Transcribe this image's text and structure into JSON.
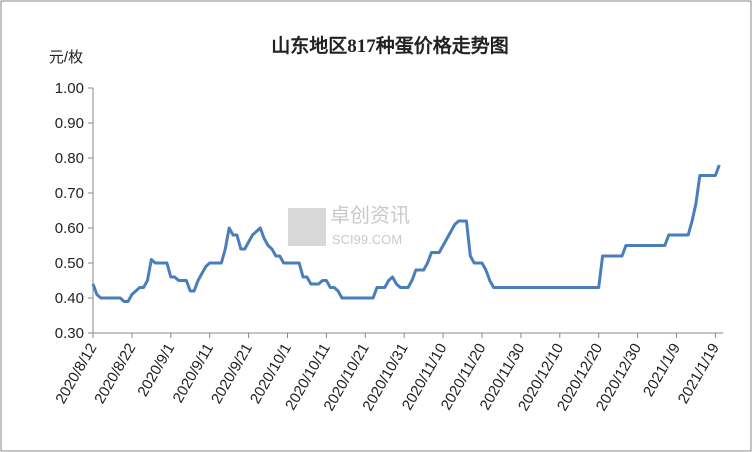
{
  "chart_data": {
    "type": "line",
    "title": "山东地区817种蛋价格走势图",
    "y_label": "元/枚",
    "watermark": [
      "卓创资讯",
      "SCI99.COM"
    ],
    "categories": [
      "2020/8/12",
      null,
      null,
      null,
      null,
      null,
      null,
      null,
      null,
      null,
      "2020/8/22",
      null,
      null,
      null,
      null,
      null,
      null,
      null,
      null,
      null,
      "2020/9/1",
      null,
      null,
      null,
      null,
      null,
      null,
      null,
      null,
      null,
      "2020/9/11",
      null,
      null,
      null,
      null,
      null,
      null,
      null,
      null,
      null,
      "2020/9/21",
      null,
      null,
      null,
      null,
      null,
      null,
      null,
      null,
      null,
      "2020/10/1",
      null,
      null,
      null,
      null,
      null,
      null,
      null,
      null,
      null,
      "2020/10/11",
      null,
      null,
      null,
      null,
      null,
      null,
      null,
      null,
      null,
      "2020/10/21",
      null,
      null,
      null,
      null,
      null,
      null,
      null,
      null,
      null,
      "2020/10/31",
      null,
      null,
      null,
      null,
      null,
      null,
      null,
      null,
      null,
      "2020/11/10",
      null,
      null,
      null,
      null,
      null,
      null,
      null,
      null,
      null,
      "2020/11/20",
      null,
      null,
      null,
      null,
      null,
      null,
      null,
      null,
      null,
      "2020/11/30",
      null,
      null,
      null,
      null,
      null,
      null,
      null,
      null,
      null,
      "2020/12/10",
      null,
      null,
      null,
      null,
      null,
      null,
      null,
      null,
      null,
      "2020/12/20",
      null,
      null,
      null,
      null,
      null,
      null,
      null,
      null,
      null,
      "2020/12/30",
      null,
      null,
      null,
      null,
      null,
      null,
      null,
      null,
      null,
      "2021/1/9",
      null,
      null,
      null,
      null,
      null,
      null,
      null,
      null,
      null,
      "2021/1/19",
      null
    ],
    "series": [
      {
        "name": "817种蛋",
        "color": "#4a7ebb",
        "values": [
          0.44,
          0.41,
          0.4,
          0.4,
          0.4,
          0.4,
          0.4,
          0.4,
          0.39,
          0.39,
          0.41,
          0.42,
          0.43,
          0.43,
          0.45,
          0.51,
          0.5,
          0.5,
          0.5,
          0.5,
          0.46,
          0.46,
          0.45,
          0.45,
          0.45,
          0.42,
          0.42,
          0.45,
          0.47,
          0.49,
          0.5,
          0.5,
          0.5,
          0.5,
          0.54,
          0.6,
          0.58,
          0.58,
          0.54,
          0.54,
          0.56,
          0.58,
          0.59,
          0.6,
          0.57,
          0.55,
          0.54,
          0.52,
          0.52,
          0.5,
          0.5,
          0.5,
          0.5,
          0.5,
          0.46,
          0.46,
          0.44,
          0.44,
          0.44,
          0.45,
          0.45,
          0.43,
          0.43,
          0.42,
          0.4,
          0.4,
          0.4,
          0.4,
          0.4,
          0.4,
          0.4,
          0.4,
          0.4,
          0.43,
          0.43,
          0.43,
          0.45,
          0.46,
          0.44,
          0.43,
          0.43,
          0.43,
          0.45,
          0.48,
          0.48,
          0.48,
          0.5,
          0.53,
          0.53,
          0.53,
          0.55,
          0.57,
          0.59,
          0.61,
          0.62,
          0.62,
          0.62,
          0.52,
          0.5,
          0.5,
          0.5,
          0.48,
          0.45,
          0.43,
          0.43,
          0.43,
          0.43,
          0.43,
          0.43,
          0.43,
          0.43,
          0.43,
          0.43,
          0.43,
          0.43,
          0.43,
          0.43,
          0.43,
          0.43,
          0.43,
          0.43,
          0.43,
          0.43,
          0.43,
          0.43,
          0.43,
          0.43,
          0.43,
          0.43,
          0.43,
          0.43,
          0.52,
          0.52,
          0.52,
          0.52,
          0.52,
          0.52,
          0.55,
          0.55,
          0.55,
          0.55,
          0.55,
          0.55,
          0.55,
          0.55,
          0.55,
          0.55,
          0.55,
          0.58,
          0.58,
          0.58,
          0.58,
          0.58,
          0.58,
          0.62,
          0.67,
          0.75,
          0.75,
          0.75,
          0.75,
          0.75,
          0.78
        ]
      }
    ],
    "ylim": [
      0.3,
      1.0
    ],
    "yticks": [
      {
        "value": 0.3,
        "label": "0.30"
      },
      {
        "value": 0.4,
        "label": "0.40"
      },
      {
        "value": 0.5,
        "label": "0.50"
      },
      {
        "value": 0.6,
        "label": "0.60"
      },
      {
        "value": 0.7,
        "label": "0.70"
      },
      {
        "value": 0.8,
        "label": "0.80"
      },
      {
        "value": 0.9,
        "label": "0.90"
      },
      {
        "value": 1.0,
        "label": "1.00"
      }
    ],
    "grid": false
  }
}
